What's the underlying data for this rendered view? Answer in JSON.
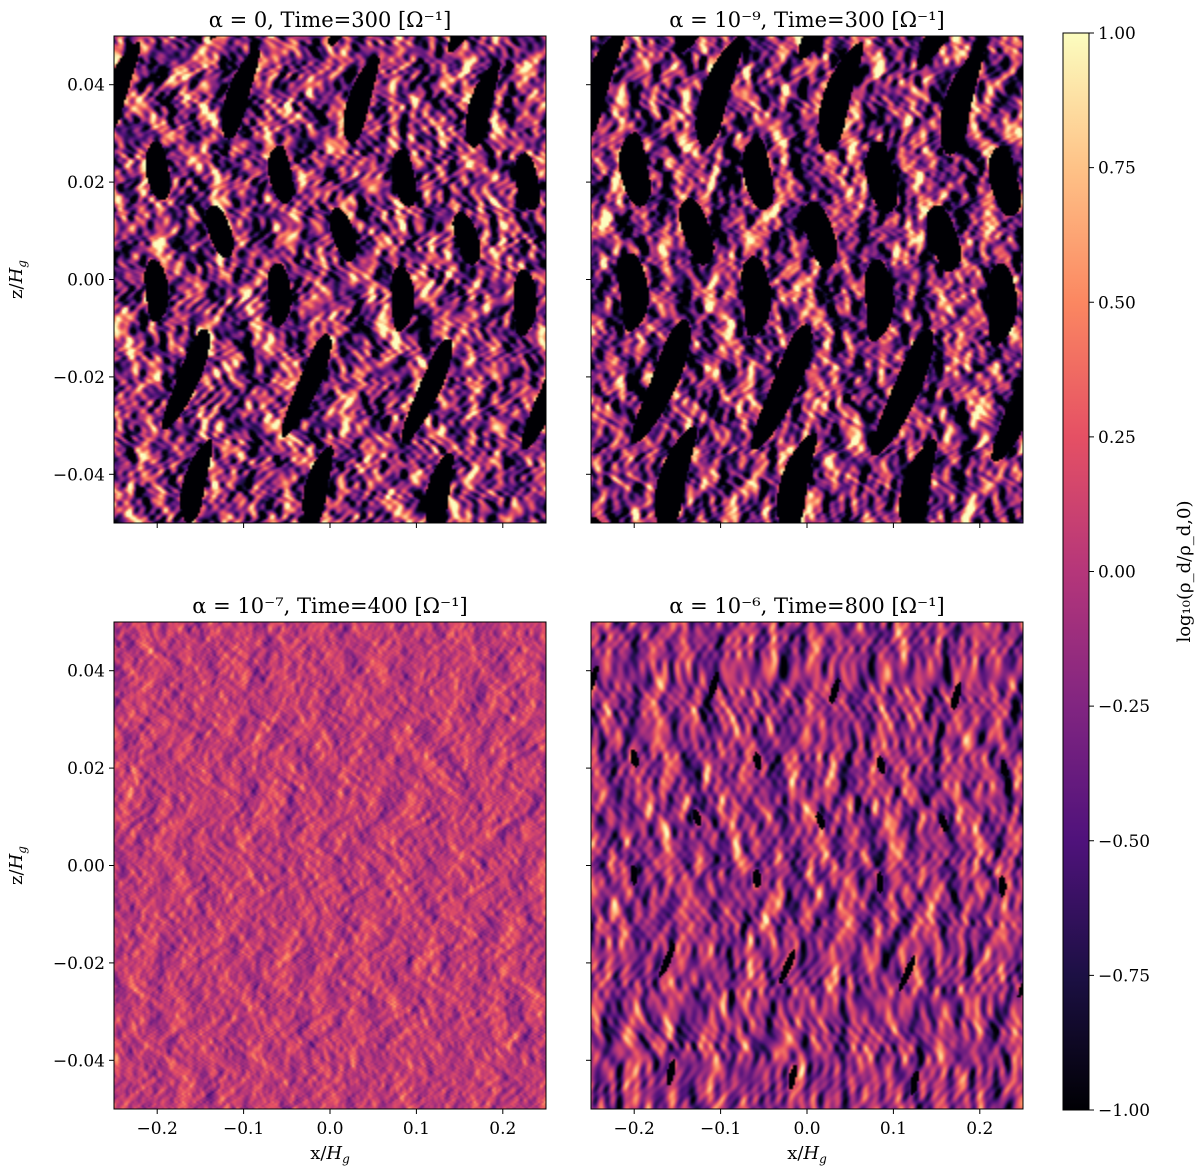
{
  "chart_data": {
    "type": "heatmap",
    "panels": [
      {
        "title": "α = 0, Time=300 [Ω⁻¹]",
        "alpha": 0,
        "time": 300,
        "texture": {
          "mean": -0.2,
          "spread": 1.05,
          "black_fraction": 0.18,
          "structure": "filamentary"
        },
        "ylabel": "z/H_g",
        "show_xlabel": false,
        "show_ylabel": true
      },
      {
        "title": "α = 10⁻⁹, Time=300 [Ω⁻¹]",
        "alpha": 1e-09,
        "time": 300,
        "texture": {
          "mean": -0.25,
          "spread": 1.1,
          "black_fraction": 0.26,
          "structure": "filamentary"
        },
        "show_xlabel": false,
        "show_ylabel": false
      },
      {
        "title": "α = 10⁻⁷, Time=400 [Ω⁻¹]",
        "alpha": 1e-07,
        "time": 400,
        "texture": {
          "mean": 0.05,
          "spread": 0.32,
          "black_fraction": 0.0,
          "structure": "fine"
        },
        "xlabel": "x/H_g",
        "ylabel": "z/H_g",
        "show_xlabel": true,
        "show_ylabel": true
      },
      {
        "title": "α = 10⁻⁶, Time=800 [Ω⁻¹]",
        "alpha": 1e-06,
        "time": 800,
        "texture": {
          "mean": -0.15,
          "spread": 0.65,
          "black_fraction": 0.02,
          "structure": "smooth"
        },
        "xlabel": "x/H_g",
        "show_xlabel": true,
        "show_ylabel": false
      }
    ],
    "xlim": [
      -0.25,
      0.25
    ],
    "ylim": [
      -0.05,
      0.05
    ],
    "xticks": [
      -0.2,
      -0.1,
      0.0,
      0.1,
      0.2
    ],
    "xtick_labels": [
      "−0.2",
      "−0.1",
      "0.0",
      "0.1",
      "0.2"
    ],
    "yticks": [
      0.04,
      0.02,
      0.0,
      -0.02,
      -0.04
    ],
    "ytick_labels": [
      "0.04",
      "0.02",
      "0.00",
      "−0.02",
      "−0.04"
    ],
    "colorbar": {
      "label": "log₁₀(ρ_d/ρ_d,0)",
      "range": [
        -1.0,
        1.0
      ],
      "ticks": [
        1.0,
        0.75,
        0.5,
        0.25,
        0.0,
        -0.25,
        -0.5,
        -0.75,
        -1.0
      ],
      "tick_labels": [
        "1.00",
        "0.75",
        "0.50",
        "0.25",
        "0.00",
        "−0.25",
        "−0.50",
        "−0.75",
        "−1.00"
      ],
      "colormap": "magma",
      "colormap_stops": [
        "#000004",
        "#1c1044",
        "#4f127b",
        "#812581",
        "#b5367a",
        "#e55064",
        "#fb8761",
        "#fec287",
        "#fcfdbf"
      ]
    }
  }
}
